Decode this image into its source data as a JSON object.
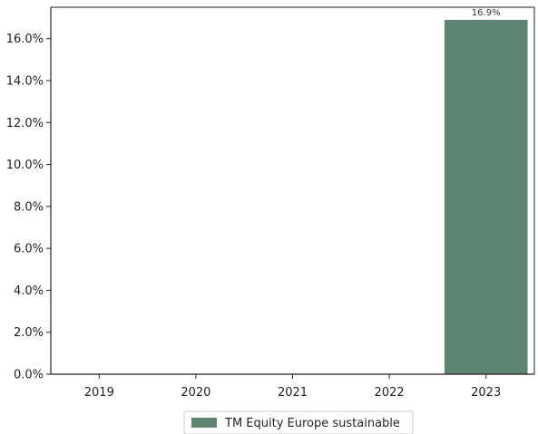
{
  "chart_data": {
    "type": "bar",
    "title": "",
    "xlabel": "",
    "ylabel": "",
    "categories": [
      "2019",
      "2020",
      "2021",
      "2022",
      "2023"
    ],
    "series": [
      {
        "name": "TM Equity Europe sustainable",
        "values": [
          null,
          null,
          null,
          null,
          16.9
        ],
        "data_labels": [
          "",
          "",
          "",
          "",
          "16.9%"
        ],
        "color": "#5e8571"
      }
    ],
    "ylim": [
      0,
      17.5
    ],
    "yticks": [
      0,
      2,
      4,
      6,
      8,
      10,
      12,
      14,
      16
    ],
    "ytick_labels": [
      "0.0%",
      "2.0%",
      "4.0%",
      "6.0%",
      "8.0%",
      "10.0%",
      "12.0%",
      "14.0%",
      "16.0%"
    ],
    "grid": false,
    "legend_position": "bottom-center"
  }
}
